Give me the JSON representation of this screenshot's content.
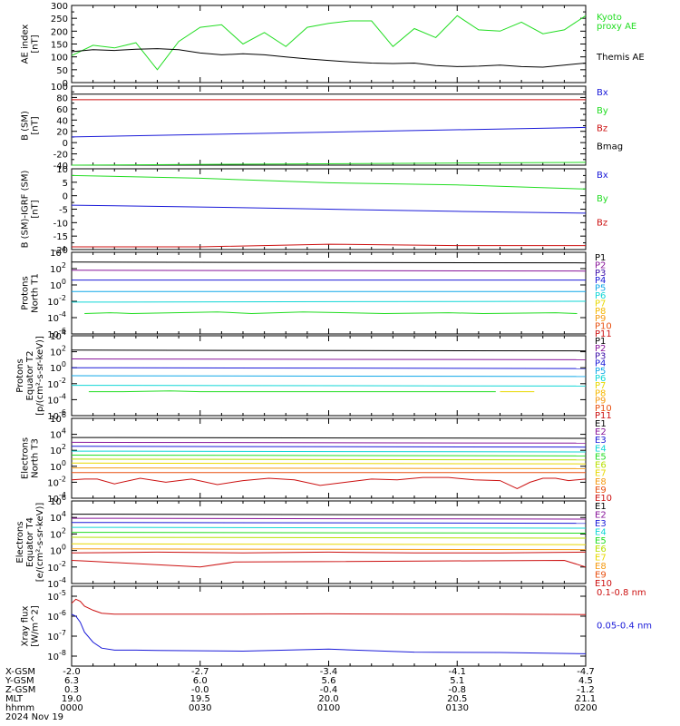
{
  "colors": {
    "black": "#000000",
    "green": "#22dd22",
    "blue": "#1a1ad8",
    "red": "#cc1111",
    "cyan": "#10d6d6",
    "yellow": "#e8d800",
    "orange": "#f59a12",
    "purple": "#88159a"
  },
  "x_axis": {
    "rows": [
      {
        "label": "X-GSM",
        "values": [
          "-2.0",
          "-2.7",
          "-3.4",
          "-4.1",
          "-4.7"
        ]
      },
      {
        "label": "Y-GSM",
        "values": [
          "6.3",
          "6.0",
          "5.6",
          "5.1",
          "4.5"
        ]
      },
      {
        "label": "Z-GSM",
        "values": [
          "0.3",
          "-0.0",
          "-0.4",
          "-0.8",
          "-1.2"
        ]
      },
      {
        "label": "MLT",
        "values": [
          "19.0",
          "19.5",
          "20.0",
          "20.5",
          "21.1"
        ]
      },
      {
        "label": "hhmm",
        "values": [
          "0000",
          "0030",
          "0100",
          "0130",
          "0200"
        ]
      }
    ],
    "date": "2024 Nov 19"
  },
  "chart_data": [
    {
      "type": "line",
      "ylabel": [
        "AE index",
        "[nT]"
      ],
      "ylim": [
        0,
        300
      ],
      "yticks": [
        0,
        50,
        100,
        150,
        200,
        250,
        300
      ],
      "x": [
        0,
        5,
        10,
        15,
        20,
        25,
        30,
        35,
        40,
        45,
        50,
        55,
        60,
        65,
        70,
        75,
        80,
        85,
        90,
        95,
        100,
        105,
        110,
        115,
        120
      ],
      "series": [
        {
          "name": "Kyoto proxy AE",
          "legend": [
            "Kyoto",
            "proxy AE"
          ],
          "color": "#22dd22",
          "values": [
            105,
            145,
            135,
            155,
            50,
            160,
            215,
            225,
            150,
            195,
            140,
            215,
            230,
            240,
            240,
            140,
            210,
            175,
            260,
            205,
            200,
            235,
            190,
            205,
            260
          ]
        },
        {
          "name": "Themis AE",
          "legend": [
            "Themis AE"
          ],
          "color": "#000000",
          "values": [
            120,
            128,
            125,
            130,
            132,
            128,
            115,
            108,
            112,
            108,
            100,
            92,
            86,
            80,
            76,
            74,
            76,
            66,
            62,
            64,
            68,
            62,
            60,
            68,
            76
          ]
        }
      ]
    },
    {
      "type": "line",
      "ylabel": [
        "B (SM)",
        "[nT]"
      ],
      "ylim": [
        -40,
        100
      ],
      "yticks": [
        -40,
        -20,
        0,
        20,
        40,
        60,
        80,
        100
      ],
      "x": [
        0,
        120
      ],
      "series": [
        {
          "name": "Bx",
          "color": "#1a1ad8",
          "values": [
            10,
            27
          ]
        },
        {
          "name": "By",
          "color": "#22dd22",
          "values": [
            -40,
            -35
          ]
        },
        {
          "name": "Bz",
          "color": "#cc1111",
          "values": [
            76,
            76
          ]
        },
        {
          "name": "Bmag",
          "color": "#000000",
          "values": [
            86,
            86
          ]
        }
      ]
    },
    {
      "type": "line",
      "ylabel": [
        "B (SM)-IGRF (SM)",
        "[nT]"
      ],
      "ylim": [
        -20,
        10
      ],
      "yticks": [
        -20,
        -15,
        -10,
        -5,
        0,
        5,
        10
      ],
      "x": [
        0,
        30,
        60,
        90,
        120
      ],
      "series": [
        {
          "name": "Bx",
          "color": "#1a1ad8",
          "values": [
            -3.5,
            -4.2,
            -5.0,
            -5.8,
            -6.5
          ]
        },
        {
          "name": "By",
          "color": "#22dd22",
          "values": [
            7.5,
            6.5,
            4.8,
            4.0,
            2.5
          ]
        },
        {
          "name": "Bz",
          "color": "#cc1111",
          "values": [
            -19,
            -19,
            -18,
            -18.5,
            -18.5
          ]
        }
      ]
    },
    {
      "type": "line",
      "log": true,
      "ylabel": [
        "Protons",
        "North T1"
      ],
      "ylim": [
        -6,
        4
      ],
      "yticks": [
        -6,
        -4,
        -2,
        0,
        2,
        4
      ],
      "channels": [
        {
          "name": "P1",
          "color": "#000000"
        },
        {
          "name": "P2",
          "color": "#88159a"
        },
        {
          "name": "P3",
          "color": "#3a0ca8"
        },
        {
          "name": "P4",
          "color": "#1a1ad8"
        },
        {
          "name": "P5",
          "color": "#10a8e8"
        },
        {
          "name": "P6",
          "color": "#10d6d6"
        },
        {
          "name": "P7",
          "color": "#e8d800"
        },
        {
          "name": "P8",
          "color": "#f5b800"
        },
        {
          "name": "P9",
          "color": "#f59a12"
        },
        {
          "name": "P10",
          "color": "#e85010"
        },
        {
          "name": "P11",
          "color": "#cc1111"
        }
      ],
      "series": [
        {
          "name": "P1",
          "color": "#000000",
          "x": [
            0,
            120
          ],
          "values": [
            2.8,
            2.7
          ]
        },
        {
          "name": "P2",
          "color": "#88159a",
          "x": [
            0,
            120
          ],
          "values": [
            1.8,
            1.7
          ]
        },
        {
          "name": "P4",
          "color": "#1a1ad8",
          "x": [
            0,
            120
          ],
          "values": [
            0.6,
            0.6
          ]
        },
        {
          "name": "P5",
          "color": "#10a8e8",
          "x": [
            0,
            120
          ],
          "values": [
            -0.8,
            -0.8
          ]
        },
        {
          "name": "P6",
          "color": "#10d6d6",
          "x": [
            0,
            120
          ],
          "values": [
            -2.1,
            -2.0
          ]
        },
        {
          "name": "P6 (low)",
          "color": "#22dd22",
          "x": [
            3,
            9,
            14,
            34,
            42,
            54,
            73,
            88,
            96,
            113,
            118
          ],
          "values": [
            -3.5,
            -3.4,
            -3.5,
            -3.3,
            -3.5,
            -3.3,
            -3.5,
            -3.4,
            -3.5,
            -3.4,
            -3.5
          ]
        }
      ]
    },
    {
      "type": "line",
      "log": true,
      "ylabel": [
        "Protons",
        "Equator T2",
        "[p/(cm²-s-sr-keV)]"
      ],
      "ylim": [
        -6,
        4
      ],
      "yticks": [
        -6,
        -4,
        -2,
        0,
        2,
        4
      ],
      "channels": [
        {
          "name": "P1",
          "color": "#000000"
        },
        {
          "name": "P2",
          "color": "#88159a"
        },
        {
          "name": "P3",
          "color": "#3a0ca8"
        },
        {
          "name": "P4",
          "color": "#1a1ad8"
        },
        {
          "name": "P5",
          "color": "#10a8e8"
        },
        {
          "name": "P6",
          "color": "#10d6d6"
        },
        {
          "name": "P7",
          "color": "#e8d800"
        },
        {
          "name": "P8",
          "color": "#f5b800"
        },
        {
          "name": "P9",
          "color": "#f59a12"
        },
        {
          "name": "P10",
          "color": "#e85010"
        },
        {
          "name": "P11",
          "color": "#cc1111"
        }
      ],
      "series": [
        {
          "name": "P1",
          "color": "#000000",
          "x": [
            0,
            120
          ],
          "values": [
            2.2,
            2.1
          ]
        },
        {
          "name": "P2",
          "color": "#88159a",
          "x": [
            0,
            120
          ],
          "values": [
            1.1,
            1.0
          ]
        },
        {
          "name": "P4",
          "color": "#1a1ad8",
          "x": [
            0,
            120
          ],
          "values": [
            0.0,
            -0.1
          ]
        },
        {
          "name": "P5",
          "color": "#10a8e8",
          "x": [
            0,
            120
          ],
          "values": [
            -1.0,
            -1.1
          ]
        },
        {
          "name": "P6",
          "color": "#10d6d6",
          "x": [
            0,
            120
          ],
          "values": [
            -2.2,
            -2.3
          ]
        },
        {
          "name": "P6 (low)",
          "color": "#22dd22",
          "x": [
            4,
            12,
            23,
            30,
            73,
            83,
            90,
            99
          ],
          "values": [
            -3.0,
            -3.0,
            -2.9,
            -3.0,
            -3.0,
            -3.0,
            -3.0,
            -3.0
          ]
        },
        {
          "name": "P7",
          "color": "#e8d800",
          "x": [
            100,
            108
          ],
          "values": [
            -3.0,
            -3.0
          ]
        }
      ]
    },
    {
      "type": "line",
      "log": true,
      "ylabel": [
        "Electrons",
        "North T3"
      ],
      "ylim": [
        -4,
        6
      ],
      "yticks": [
        -4,
        -2,
        0,
        2,
        4,
        6
      ],
      "channels": [
        {
          "name": "E1",
          "color": "#000000"
        },
        {
          "name": "E2",
          "color": "#88159a"
        },
        {
          "name": "E3",
          "color": "#1a1ad8"
        },
        {
          "name": "E4",
          "color": "#10d6d6"
        },
        {
          "name": "E5",
          "color": "#22dd22"
        },
        {
          "name": "E6",
          "color": "#b8e000"
        },
        {
          "name": "E7",
          "color": "#e8d800"
        },
        {
          "name": "E8",
          "color": "#f59a12"
        },
        {
          "name": "E9",
          "color": "#e85010"
        },
        {
          "name": "E10",
          "color": "#cc1111"
        }
      ],
      "series": [
        {
          "name": "E1",
          "color": "#000000",
          "x": [
            0,
            120
          ],
          "values": [
            3.6,
            3.5
          ]
        },
        {
          "name": "E2",
          "color": "#88159a",
          "x": [
            0,
            120
          ],
          "values": [
            3.0,
            2.9
          ]
        },
        {
          "name": "E3",
          "color": "#1a1ad8",
          "x": [
            0,
            120
          ],
          "values": [
            2.5,
            2.4
          ]
        },
        {
          "name": "E4",
          "color": "#10d6d6",
          "x": [
            0,
            120
          ],
          "values": [
            1.9,
            1.8
          ]
        },
        {
          "name": "E5",
          "color": "#22dd22",
          "x": [
            0,
            120
          ],
          "values": [
            1.4,
            1.3
          ]
        },
        {
          "name": "E6",
          "color": "#b8e000",
          "x": [
            0,
            120
          ],
          "values": [
            0.9,
            0.8
          ]
        },
        {
          "name": "E7",
          "color": "#e8d800",
          "x": [
            0,
            120
          ],
          "values": [
            0.4,
            0.3
          ]
        },
        {
          "name": "E8",
          "color": "#f59a12",
          "x": [
            0,
            120
          ],
          "values": [
            -0.2,
            -0.3
          ]
        },
        {
          "name": "E9",
          "color": "#e85010",
          "x": [
            0,
            120
          ],
          "values": [
            -0.8,
            -0.8
          ]
        },
        {
          "name": "E10",
          "color": "#cc1111",
          "x": [
            0,
            3,
            6,
            10,
            16,
            22,
            28,
            34,
            40,
            46,
            52,
            58,
            64,
            70,
            76,
            82,
            88,
            94,
            100,
            104,
            107,
            110,
            113,
            116,
            120
          ],
          "values": [
            -1.7,
            -1.6,
            -1.6,
            -2.2,
            -1.5,
            -2.0,
            -1.6,
            -2.3,
            -1.8,
            -1.5,
            -1.7,
            -2.4,
            -2.0,
            -1.6,
            -1.7,
            -1.4,
            -1.4,
            -1.7,
            -1.8,
            -2.8,
            -2.0,
            -1.5,
            -1.5,
            -1.8,
            -1.6
          ]
        }
      ]
    },
    {
      "type": "line",
      "log": true,
      "ylabel": [
        "Electrons",
        "Equator T4",
        "[e/(cm²-s-sr-keV)]"
      ],
      "ylim": [
        -4,
        6
      ],
      "yticks": [
        -4,
        -2,
        0,
        2,
        4,
        6
      ],
      "channels": [
        {
          "name": "E1",
          "color": "#000000"
        },
        {
          "name": "E2",
          "color": "#88159a"
        },
        {
          "name": "E3",
          "color": "#1a1ad8"
        },
        {
          "name": "E4",
          "color": "#10d6d6"
        },
        {
          "name": "E5",
          "color": "#22dd22"
        },
        {
          "name": "E6",
          "color": "#b8e000"
        },
        {
          "name": "E7",
          "color": "#e8d800"
        },
        {
          "name": "E8",
          "color": "#f59a12"
        },
        {
          "name": "E9",
          "color": "#e85010"
        },
        {
          "name": "E10",
          "color": "#cc1111"
        }
      ],
      "series": [
        {
          "name": "E1",
          "color": "#000000",
          "x": [
            0,
            120
          ],
          "values": [
            4.4,
            4.3
          ]
        },
        {
          "name": "E2",
          "color": "#88159a",
          "x": [
            0,
            120
          ],
          "values": [
            3.9,
            3.8
          ]
        },
        {
          "name": "E3",
          "color": "#1a1ad8",
          "x": [
            0,
            120
          ],
          "values": [
            3.4,
            3.3
          ]
        },
        {
          "name": "E4",
          "color": "#10d6d6",
          "x": [
            0,
            120
          ],
          "values": [
            2.8,
            2.7
          ]
        },
        {
          "name": "E5",
          "color": "#22dd22",
          "x": [
            0,
            120
          ],
          "values": [
            2.2,
            2.1
          ]
        },
        {
          "name": "E6",
          "color": "#b8e000",
          "x": [
            0,
            120
          ],
          "values": [
            1.6,
            1.5
          ]
        },
        {
          "name": "E7",
          "color": "#e8d800",
          "x": [
            0,
            120
          ],
          "values": [
            0.8,
            0.7
          ]
        },
        {
          "name": "E8",
          "color": "#f59a12",
          "x": [
            0,
            120
          ],
          "values": [
            0.2,
            0.1
          ]
        },
        {
          "name": "E9",
          "color": "#cc1111",
          "x": [
            0,
            20,
            40,
            60,
            80,
            100,
            120
          ],
          "values": [
            -0.3,
            -0.2,
            -0.3,
            -0.2,
            -0.3,
            -0.3,
            -0.2
          ]
        },
        {
          "name": "E10",
          "color": "#cc1111",
          "x": [
            0,
            4,
            30,
            38,
            115,
            120
          ],
          "values": [
            -1.2,
            -1.3,
            -2.0,
            -1.4,
            -1.2,
            -2.0
          ]
        }
      ]
    },
    {
      "type": "line",
      "log": true,
      "ylabel": [
        "Xray flux",
        "[W/m^2]"
      ],
      "ylim": [
        -8.5,
        -4.5
      ],
      "yticks": [
        -8,
        -7,
        -6,
        -5
      ],
      "x": [
        0,
        1,
        2,
        3,
        5,
        7,
        10,
        15,
        20,
        40,
        60,
        80,
        100,
        120
      ],
      "series": [
        {
          "name": "0.1-0.8 nm",
          "color": "#cc1111",
          "values": [
            -5.35,
            -5.15,
            -5.25,
            -5.5,
            -5.7,
            -5.85,
            -5.9,
            -5.9,
            -5.9,
            -5.9,
            -5.88,
            -5.9,
            -5.9,
            -5.92
          ]
        },
        {
          "name": "0.05-0.4 nm",
          "color": "#1a1ad8",
          "values": [
            -5.9,
            -6.0,
            -6.3,
            -6.8,
            -7.3,
            -7.6,
            -7.7,
            -7.7,
            -7.72,
            -7.75,
            -7.65,
            -7.8,
            -7.82,
            -7.88
          ]
        }
      ]
    }
  ]
}
